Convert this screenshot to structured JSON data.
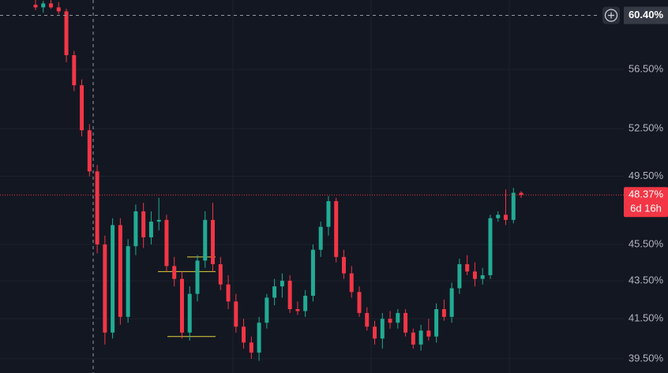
{
  "chart_data": {
    "type": "candlestick",
    "log_scale": true,
    "grid": true,
    "up_color": "#22ab94",
    "down_color": "#f23645",
    "ylim": [
      38.81,
      61.56
    ],
    "yticks": [
      {
        "value": 56.5,
        "label": "56.50%"
      },
      {
        "value": 52.5,
        "label": "52.50%"
      },
      {
        "value": 49.5,
        "label": "49.50%"
      },
      {
        "value": 45.5,
        "label": "45.50%"
      },
      {
        "value": 43.5,
        "label": "43.50%"
      },
      {
        "value": 41.5,
        "label": "41.50%"
      },
      {
        "value": 39.5,
        "label": "39.50%"
      }
    ],
    "crosshair": {
      "value": 60.4,
      "label": "60.40%"
    },
    "last_price": {
      "value": 48.37,
      "label": "48.37%"
    },
    "countdown": "6d 16h",
    "drawn_levels": [
      44.8,
      44.0,
      40.6
    ],
    "candles": [
      [
        61.2,
        61.6,
        60.8,
        61.0
      ],
      [
        61.0,
        61.5,
        60.6,
        61.3
      ],
      [
        61.3,
        61.6,
        60.9,
        61.0
      ],
      [
        61.0,
        61.4,
        60.5,
        60.7
      ],
      [
        60.7,
        60.9,
        57.0,
        57.5
      ],
      [
        57.5,
        57.8,
        55.0,
        55.4
      ],
      [
        55.4,
        55.8,
        52.0,
        52.4
      ],
      [
        52.4,
        52.8,
        49.5,
        49.8
      ],
      [
        49.8,
        50.2,
        45.0,
        45.5
      ],
      [
        45.5,
        46.0,
        40.2,
        40.8
      ],
      [
        40.8,
        47.0,
        40.5,
        46.6
      ],
      [
        46.6,
        47.0,
        41.2,
        41.6
      ],
      [
        41.6,
        45.8,
        41.3,
        45.4
      ],
      [
        45.4,
        47.8,
        44.9,
        47.4
      ],
      [
        47.4,
        47.9,
        45.3,
        45.9
      ],
      [
        45.9,
        47.4,
        45.5,
        46.8
      ],
      [
        46.8,
        48.2,
        46.3,
        46.9
      ],
      [
        46.9,
        47.2,
        44.0,
        44.3
      ],
      [
        44.3,
        44.8,
        43.2,
        43.6
      ],
      [
        43.6,
        44.0,
        40.5,
        40.8
      ],
      [
        40.8,
        43.2,
        40.4,
        42.8
      ],
      [
        42.8,
        44.9,
        42.4,
        44.6
      ],
      [
        44.6,
        47.4,
        44.2,
        46.9
      ],
      [
        46.9,
        47.9,
        44.0,
        44.4
      ],
      [
        44.4,
        44.8,
        43.0,
        43.3
      ],
      [
        43.3,
        43.8,
        42.0,
        42.4
      ],
      [
        42.4,
        42.8,
        40.8,
        41.1
      ],
      [
        41.1,
        41.5,
        40.0,
        40.3
      ],
      [
        40.3,
        40.6,
        39.5,
        39.8
      ],
      [
        39.8,
        41.6,
        39.4,
        41.3
      ],
      [
        41.3,
        42.8,
        41.0,
        42.6
      ],
      [
        42.6,
        43.6,
        42.2,
        43.2
      ],
      [
        43.2,
        43.9,
        42.6,
        43.5
      ],
      [
        43.5,
        43.8,
        41.8,
        42.0
      ],
      [
        42.0,
        42.4,
        41.7,
        41.9
      ],
      [
        41.9,
        43.0,
        41.6,
        42.7
      ],
      [
        42.7,
        45.5,
        42.4,
        45.2
      ],
      [
        45.2,
        46.8,
        44.8,
        46.5
      ],
      [
        46.5,
        48.3,
        46.0,
        48.0
      ],
      [
        48.0,
        48.2,
        44.5,
        44.8
      ],
      [
        44.8,
        45.2,
        43.6,
        43.9
      ],
      [
        43.9,
        44.3,
        42.6,
        42.9
      ],
      [
        42.9,
        43.2,
        41.6,
        41.8
      ],
      [
        41.8,
        42.1,
        40.9,
        41.1
      ],
      [
        41.1,
        41.4,
        40.2,
        40.5
      ],
      [
        40.5,
        41.8,
        40.0,
        41.5
      ],
      [
        41.5,
        41.9,
        41.0,
        41.3
      ],
      [
        41.3,
        42.0,
        41.0,
        41.8
      ],
      [
        41.8,
        42.0,
        40.6,
        40.8
      ],
      [
        40.8,
        41.0,
        40.0,
        40.2
      ],
      [
        40.2,
        41.2,
        39.9,
        40.9
      ],
      [
        40.9,
        41.5,
        40.4,
        40.6
      ],
      [
        40.6,
        42.3,
        40.3,
        42.0
      ],
      [
        42.0,
        42.5,
        41.4,
        41.6
      ],
      [
        41.6,
        43.4,
        41.3,
        43.1
      ],
      [
        43.1,
        44.7,
        42.8,
        44.4
      ],
      [
        44.4,
        44.9,
        43.8,
        44.0
      ],
      [
        44.0,
        44.5,
        43.2,
        43.6
      ],
      [
        43.6,
        44.2,
        43.3,
        43.8
      ],
      [
        43.8,
        47.2,
        43.6,
        47.0
      ],
      [
        47.0,
        47.4,
        46.8,
        47.2
      ],
      [
        47.2,
        48.7,
        46.6,
        46.9
      ],
      [
        46.9,
        48.8,
        46.7,
        48.5
      ],
      [
        48.5,
        48.6,
        48.2,
        48.37
      ]
    ]
  }
}
